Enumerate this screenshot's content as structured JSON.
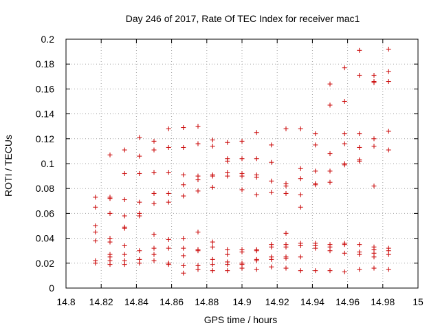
{
  "chart_data": {
    "type": "scatter",
    "title": "Day 246 of 2017, Rate Of TEC Index for receiver mac1",
    "xlabel": "GPS time / hours",
    "ylabel": "ROTI / TECUs",
    "xlim": [
      14.8,
      15.0
    ],
    "ylim": [
      0,
      0.2
    ],
    "x_ticks": [
      "14.8",
      "14.82",
      "14.84",
      "14.86",
      "14.88",
      "14.9",
      "14.92",
      "14.94",
      "14.96",
      "14.98",
      "15"
    ],
    "y_ticks": [
      "0",
      "0.02",
      "0.04",
      "0.06",
      "0.08",
      "0.1",
      "0.12",
      "0.14",
      "0.16",
      "0.18",
      "0.2"
    ],
    "grid": true,
    "marker": "+",
    "marker_color": "#cc1010",
    "series": [
      {
        "name": "mac1",
        "points": [
          [
            14.8167,
            0.073
          ],
          [
            14.8167,
            0.065
          ],
          [
            14.8167,
            0.05
          ],
          [
            14.8167,
            0.045
          ],
          [
            14.8167,
            0.038
          ],
          [
            14.8167,
            0.022
          ],
          [
            14.8167,
            0.02
          ],
          [
            14.825,
            0.107
          ],
          [
            14.825,
            0.073
          ],
          [
            14.825,
            0.072
          ],
          [
            14.825,
            0.06
          ],
          [
            14.825,
            0.04
          ],
          [
            14.825,
            0.037
          ],
          [
            14.825,
            0.027
          ],
          [
            14.825,
            0.025
          ],
          [
            14.825,
            0.022
          ],
          [
            14.825,
            0.019
          ],
          [
            14.8333,
            0.111
          ],
          [
            14.8333,
            0.092
          ],
          [
            14.8333,
            0.071
          ],
          [
            14.8333,
            0.058
          ],
          [
            14.8333,
            0.049
          ],
          [
            14.8333,
            0.048
          ],
          [
            14.8333,
            0.034
          ],
          [
            14.8333,
            0.027
          ],
          [
            14.8333,
            0.022
          ],
          [
            14.8333,
            0.019
          ],
          [
            14.8417,
            0.121
          ],
          [
            14.8417,
            0.106
          ],
          [
            14.8417,
            0.092
          ],
          [
            14.8417,
            0.069
          ],
          [
            14.8417,
            0.06
          ],
          [
            14.8417,
            0.058
          ],
          [
            14.8417,
            0.03
          ],
          [
            14.8417,
            0.023
          ],
          [
            14.8417,
            0.02
          ],
          [
            14.85,
            0.118
          ],
          [
            14.85,
            0.111
          ],
          [
            14.85,
            0.093
          ],
          [
            14.85,
            0.076
          ],
          [
            14.85,
            0.068
          ],
          [
            14.85,
            0.043
          ],
          [
            14.85,
            0.032
          ],
          [
            14.85,
            0.027
          ],
          [
            14.85,
            0.022
          ],
          [
            14.8583,
            0.128
          ],
          [
            14.8583,
            0.113
          ],
          [
            14.8583,
            0.093
          ],
          [
            14.8583,
            0.076
          ],
          [
            14.8583,
            0.069
          ],
          [
            14.8583,
            0.039
          ],
          [
            14.8583,
            0.032
          ],
          [
            14.8583,
            0.02
          ],
          [
            14.8583,
            0.019
          ],
          [
            14.8667,
            0.129
          ],
          [
            14.8667,
            0.113
          ],
          [
            14.8667,
            0.091
          ],
          [
            14.8667,
            0.083
          ],
          [
            14.8667,
            0.074
          ],
          [
            14.8667,
            0.04
          ],
          [
            14.8667,
            0.032
          ],
          [
            14.8667,
            0.026
          ],
          [
            14.8667,
            0.018
          ],
          [
            14.8667,
            0.012
          ],
          [
            14.875,
            0.13
          ],
          [
            14.875,
            0.116
          ],
          [
            14.875,
            0.09
          ],
          [
            14.875,
            0.087
          ],
          [
            14.875,
            0.078
          ],
          [
            14.875,
            0.045
          ],
          [
            14.875,
            0.031
          ],
          [
            14.875,
            0.03
          ],
          [
            14.875,
            0.018
          ],
          [
            14.875,
            0.015
          ],
          [
            14.8833,
            0.119
          ],
          [
            14.8833,
            0.114
          ],
          [
            14.8833,
            0.091
          ],
          [
            14.8833,
            0.09
          ],
          [
            14.8833,
            0.081
          ],
          [
            14.8833,
            0.037
          ],
          [
            14.8833,
            0.033
          ],
          [
            14.8833,
            0.023
          ],
          [
            14.8833,
            0.019
          ],
          [
            14.8833,
            0.014
          ],
          [
            14.8917,
            0.117
          ],
          [
            14.8917,
            0.104
          ],
          [
            14.8917,
            0.102
          ],
          [
            14.8917,
            0.093
          ],
          [
            14.8917,
            0.09
          ],
          [
            14.8917,
            0.031
          ],
          [
            14.8917,
            0.027
          ],
          [
            14.8917,
            0.021
          ],
          [
            14.8917,
            0.019
          ],
          [
            14.8917,
            0.014
          ],
          [
            14.9,
            0.118
          ],
          [
            14.9,
            0.104
          ],
          [
            14.9,
            0.092
          ],
          [
            14.9,
            0.09
          ],
          [
            14.9,
            0.079
          ],
          [
            14.9,
            0.031
          ],
          [
            14.9,
            0.029
          ],
          [
            14.9,
            0.02
          ],
          [
            14.9,
            0.019
          ],
          [
            14.9,
            0.016
          ],
          [
            14.9083,
            0.125
          ],
          [
            14.9083,
            0.104
          ],
          [
            14.9083,
            0.091
          ],
          [
            14.9083,
            0.089
          ],
          [
            14.9083,
            0.075
          ],
          [
            14.9083,
            0.031
          ],
          [
            14.9083,
            0.03
          ],
          [
            14.9083,
            0.023
          ],
          [
            14.9083,
            0.022
          ],
          [
            14.9083,
            0.015
          ],
          [
            14.9167,
            0.115
          ],
          [
            14.9167,
            0.101
          ],
          [
            14.9167,
            0.086
          ],
          [
            14.9167,
            0.077
          ],
          [
            14.9167,
            0.035
          ],
          [
            14.9167,
            0.033
          ],
          [
            14.9167,
            0.025
          ],
          [
            14.9167,
            0.023
          ],
          [
            14.9167,
            0.017
          ],
          [
            14.925,
            0.128
          ],
          [
            14.925,
            0.084
          ],
          [
            14.925,
            0.082
          ],
          [
            14.925,
            0.076
          ],
          [
            14.925,
            0.044
          ],
          [
            14.925,
            0.035
          ],
          [
            14.925,
            0.033
          ],
          [
            14.925,
            0.025
          ],
          [
            14.925,
            0.024
          ],
          [
            14.925,
            0.016
          ],
          [
            14.9333,
            0.128
          ],
          [
            14.9333,
            0.096
          ],
          [
            14.9333,
            0.088
          ],
          [
            14.9333,
            0.075
          ],
          [
            14.9333,
            0.065
          ],
          [
            14.9333,
            0.036
          ],
          [
            14.9333,
            0.034
          ],
          [
            14.9333,
            0.025
          ],
          [
            14.9333,
            0.014
          ],
          [
            14.9417,
            0.124
          ],
          [
            14.9417,
            0.115
          ],
          [
            14.9417,
            0.094
          ],
          [
            14.9417,
            0.084
          ],
          [
            14.9417,
            0.083
          ],
          [
            14.9417,
            0.036
          ],
          [
            14.9417,
            0.034
          ],
          [
            14.9417,
            0.032
          ],
          [
            14.9417,
            0.014
          ],
          [
            14.95,
            0.164
          ],
          [
            14.95,
            0.147
          ],
          [
            14.95,
            0.108
          ],
          [
            14.95,
            0.094
          ],
          [
            14.95,
            0.085
          ],
          [
            14.95,
            0.035
          ],
          [
            14.95,
            0.033
          ],
          [
            14.95,
            0.03
          ],
          [
            14.95,
            0.014
          ],
          [
            14.9583,
            0.177
          ],
          [
            14.9583,
            0.15
          ],
          [
            14.9583,
            0.124
          ],
          [
            14.9583,
            0.116
          ],
          [
            14.9583,
            0.1
          ],
          [
            14.9583,
            0.099
          ],
          [
            14.9583,
            0.036
          ],
          [
            14.9583,
            0.035
          ],
          [
            14.9583,
            0.028
          ],
          [
            14.9583,
            0.013
          ],
          [
            14.9667,
            0.191
          ],
          [
            14.9667,
            0.171
          ],
          [
            14.9667,
            0.124
          ],
          [
            14.9667,
            0.113
          ],
          [
            14.9667,
            0.103
          ],
          [
            14.9667,
            0.102
          ],
          [
            14.9667,
            0.035
          ],
          [
            14.9667,
            0.029
          ],
          [
            14.9667,
            0.027
          ],
          [
            14.9667,
            0.015
          ],
          [
            14.975,
            0.171
          ],
          [
            14.975,
            0.166
          ],
          [
            14.975,
            0.165
          ],
          [
            14.975,
            0.12
          ],
          [
            14.975,
            0.114
          ],
          [
            14.975,
            0.082
          ],
          [
            14.975,
            0.033
          ],
          [
            14.975,
            0.031
          ],
          [
            14.975,
            0.028
          ],
          [
            14.975,
            0.025
          ],
          [
            14.975,
            0.016
          ],
          [
            14.9833,
            0.192
          ],
          [
            14.9833,
            0.174
          ],
          [
            14.9833,
            0.166
          ],
          [
            14.9833,
            0.126
          ],
          [
            14.9833,
            0.111
          ],
          [
            14.9833,
            0.032
          ],
          [
            14.9833,
            0.03
          ],
          [
            14.9833,
            0.027
          ],
          [
            14.9833,
            0.015
          ]
        ]
      }
    ]
  }
}
